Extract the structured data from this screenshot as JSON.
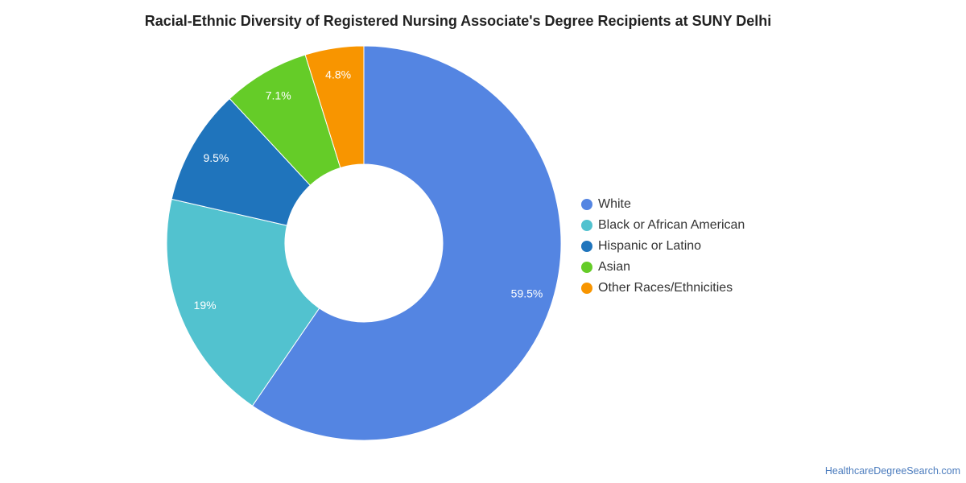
{
  "chart_data": {
    "type": "pie",
    "title": "Racial-Ethnic Diversity of Registered Nursing Associate's Degree Recipients at SUNY Delhi",
    "slices": [
      {
        "label": "White",
        "value": 59.5,
        "display": "59.5%",
        "color": "#5485e2"
      },
      {
        "label": "Black or African American",
        "value": 19,
        "display": "19%",
        "color": "#52c2cf"
      },
      {
        "label": "Hispanic or Latino",
        "value": 9.5,
        "display": "9.5%",
        "color": "#1f74bc"
      },
      {
        "label": "Asian",
        "value": 7.1,
        "display": "7.1%",
        "color": "#65cc28"
      },
      {
        "label": "Other Races/Ethnicities",
        "value": 4.8,
        "display": "4.8%",
        "color": "#f89500"
      }
    ],
    "donut": true,
    "legend_position": "right"
  },
  "source": "HealthcareDegreeSearch.com"
}
